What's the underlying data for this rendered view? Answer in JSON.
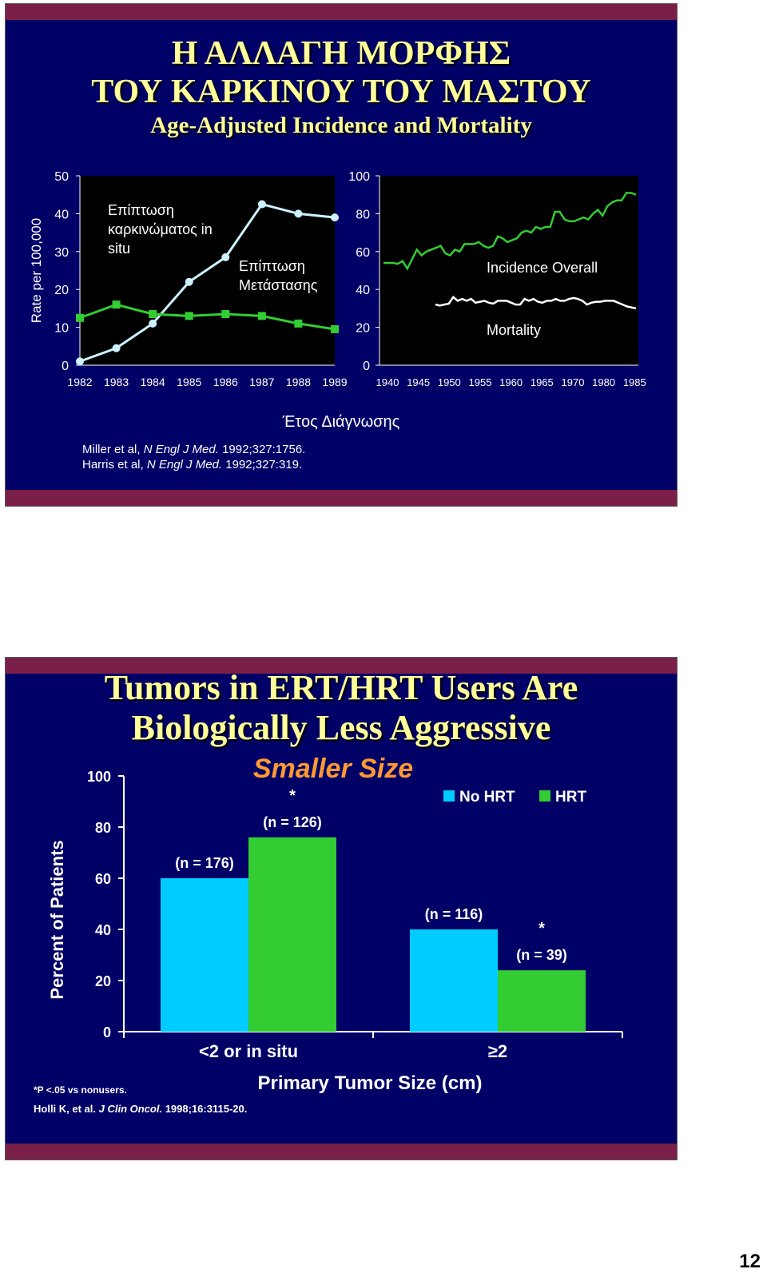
{
  "slide1": {
    "title_line1": "Η ΑΛΛΑΓΗ ΜΟΡΦΗΣ",
    "title_line2": "ΤΟΥ ΚΑΡΚΙΝΟΥ ΤΟΥ ΜΑΣΤΟΥ",
    "subtitle": "Age-Adjusted Incidence and Mortality",
    "xlabel": "Έτος Διάγνωσης",
    "ref1": {
      "pre": "Miller et al, ",
      "journal": "N Engl J Med.",
      "post": " 1992;327:1756."
    },
    "ref2": {
      "pre": "Harris et al, ",
      "journal": "N Engl J Med.",
      "post": " 1992;327:319."
    }
  },
  "slide2": {
    "title_line1": "Tumors in ERT/HRT Users Are",
    "title_line2": "Biologically Less Aggressive",
    "footnote": "*P <.05 vs nonusers.",
    "ref": {
      "pre": "Holli K, et al. ",
      "journal": "J Clin Oncol.",
      "post": " 1998;16:3115-20."
    }
  },
  "page_number": "12",
  "chart_data": [
    {
      "type": "line",
      "ylabel": "Rate per 100,000",
      "ylim": [
        0,
        50
      ],
      "yticks": [
        "0",
        "10",
        "20",
        "30",
        "40",
        "50"
      ],
      "x": [
        "1982",
        "1983",
        "1984",
        "1985",
        "1986",
        "1987",
        "1988",
        "1989"
      ],
      "series": [
        {
          "name": "Επίπτωση καρκινώματος in situ",
          "label_lines": [
            "Επίπτωση",
            "καρκινώματος in",
            "situ"
          ],
          "color": "#ccf2ff",
          "values": [
            1,
            4.5,
            11,
            22,
            28.5,
            42.5,
            40,
            39
          ]
        },
        {
          "name": "Επίπτωση Μετάστασης",
          "label_lines": [
            "Επίπτωση",
            "Μετάστασης"
          ],
          "color": "#33cc33",
          "values": [
            12.5,
            16,
            13.5,
            13,
            13.5,
            13,
            11,
            9.5
          ]
        }
      ],
      "grid": false,
      "background": "#000000"
    },
    {
      "type": "line",
      "ylim": [
        0,
        100
      ],
      "yticks": [
        "0",
        "20",
        "40",
        "60",
        "80",
        "100"
      ],
      "xticks": [
        "1940",
        "1945",
        "1950",
        "1955",
        "1960",
        "1965",
        "1970",
        "1980",
        "1985"
      ],
      "series": [
        {
          "name": "Incidence Overall",
          "color": "#33cc33",
          "values": [
            54,
            54,
            54,
            53.5,
            55,
            51,
            56,
            61,
            58,
            60,
            61,
            62,
            63,
            59,
            58,
            61,
            60,
            64,
            64,
            64,
            65,
            63,
            62,
            63,
            68,
            67,
            65,
            66,
            67,
            70,
            71,
            70,
            73,
            72,
            73,
            73,
            81,
            81,
            77,
            76,
            76,
            77,
            78,
            77,
            80,
            82,
            79,
            84,
            86,
            87,
            87,
            91,
            91,
            90
          ]
        },
        {
          "name": "Mortality",
          "color": "#ffffff",
          "values": [
            32,
            31.5,
            32,
            32.5,
            36,
            34,
            35,
            34,
            35,
            33,
            33.5,
            34,
            33,
            32.5,
            34,
            34,
            34,
            33,
            32,
            32,
            35,
            34,
            35,
            33.5,
            33,
            34,
            34,
            35,
            34,
            34,
            35,
            35.5,
            35,
            34,
            32,
            33,
            33.5,
            33.5,
            34,
            34,
            34,
            33,
            32,
            31,
            30.5,
            30
          ]
        }
      ],
      "grid": false,
      "background": "#000000"
    },
    {
      "type": "bar",
      "title": "Smaller Size",
      "ylabel": "Percent of Patients",
      "xlabel": "Primary Tumor Size (cm)",
      "ylim": [
        0,
        100
      ],
      "yticks": [
        "0",
        "20",
        "40",
        "60",
        "80",
        "100"
      ],
      "categories": [
        "<2 or in situ",
        "≥2"
      ],
      "series": [
        {
          "name": "No HRT",
          "color": "#00ccff",
          "values": [
            60,
            40
          ],
          "labels": [
            "(n = 176)",
            "(n = 116)"
          ],
          "stars": [
            "",
            ""
          ]
        },
        {
          "name": "HRT",
          "color": "#33cc33",
          "values": [
            76,
            24
          ],
          "labels": [
            "(n = 126)",
            "(n = 39)"
          ],
          "stars": [
            "*",
            "*"
          ]
        }
      ],
      "legend": "top-right"
    }
  ]
}
